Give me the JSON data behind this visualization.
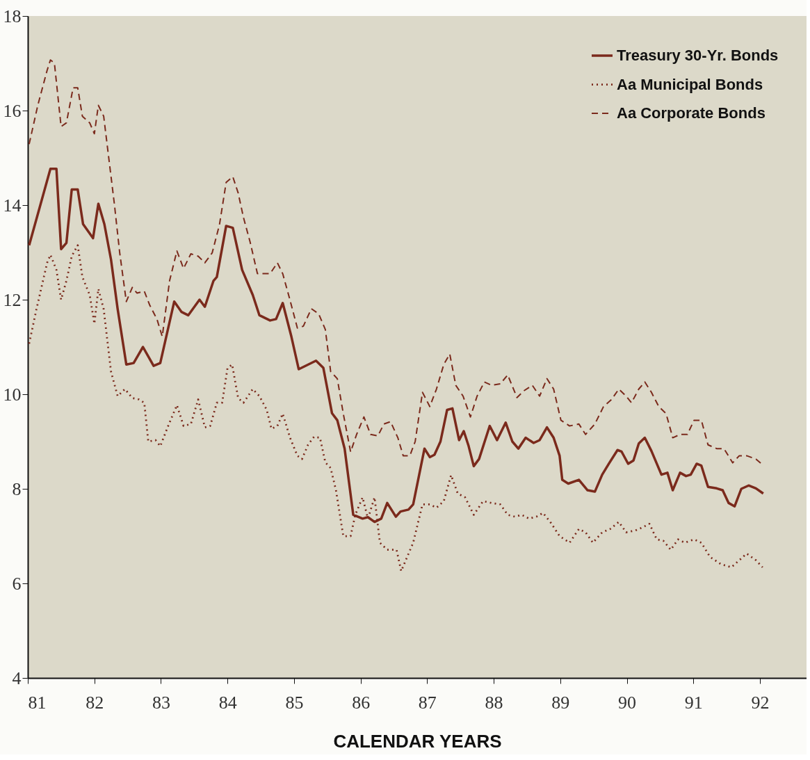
{
  "chart_data": {
    "type": "line",
    "xlabel": "CALENDAR YEARS",
    "xlim": [
      81,
      92.7
    ],
    "xticks": [
      81,
      82,
      83,
      84,
      85,
      86,
      87,
      88,
      89,
      90,
      91,
      92
    ],
    "ylim": [
      4,
      18
    ],
    "yticks": [
      4,
      6,
      8,
      10,
      12,
      14,
      16,
      18
    ],
    "grid": false,
    "legend": "top right",
    "marker": "none",
    "series": [
      {
        "name": "Treasury 30-Yr. Bonds",
        "color": "#7b2a1c",
        "line_style": "solid",
        "x": [
          81.02,
          81.34,
          81.43,
          81.5,
          81.58,
          81.66,
          81.75,
          81.83,
          81.98,
          82.06,
          82.15,
          82.25,
          82.35,
          82.48,
          82.59,
          82.73,
          82.89,
          82.99,
          83.2,
          83.31,
          83.41,
          83.58,
          83.66,
          83.79,
          83.84,
          83.98,
          84.08,
          84.22,
          84.38,
          84.48,
          84.64,
          84.73,
          84.83,
          84.96,
          85.07,
          85.33,
          85.44,
          85.57,
          85.65,
          85.76,
          85.89,
          86.03,
          86.11,
          86.21,
          86.31,
          86.4,
          86.53,
          86.6,
          86.72,
          86.79,
          86.96,
          87.04,
          87.11,
          87.2,
          87.3,
          87.38,
          87.48,
          87.55,
          87.62,
          87.7,
          87.78,
          87.94,
          88.05,
          88.18,
          88.28,
          88.37,
          88.48,
          88.6,
          88.69,
          88.8,
          88.9,
          88.99,
          89.03,
          89.12,
          89.28,
          89.41,
          89.52,
          89.63,
          89.73,
          89.86,
          89.92,
          90.02,
          90.1,
          90.18,
          90.27,
          90.37,
          90.52,
          90.61,
          90.69,
          90.8,
          90.89,
          90.96,
          91.05,
          91.12,
          91.22,
          91.35,
          91.44,
          91.53,
          91.62,
          91.72,
          91.83,
          91.94,
          92.05
        ],
        "values": [
          13.15,
          14.77,
          14.77,
          13.07,
          13.2,
          14.33,
          14.33,
          13.6,
          13.3,
          14.03,
          13.6,
          12.85,
          11.8,
          10.63,
          10.66,
          11.0,
          10.6,
          10.66,
          11.96,
          11.74,
          11.67,
          12.0,
          11.85,
          12.4,
          12.48,
          13.56,
          13.52,
          12.63,
          12.1,
          11.67,
          11.56,
          11.59,
          11.93,
          11.22,
          10.53,
          10.71,
          10.56,
          9.6,
          9.45,
          8.85,
          7.45,
          7.37,
          7.4,
          7.3,
          7.37,
          7.7,
          7.41,
          7.52,
          7.56,
          7.67,
          8.85,
          8.67,
          8.72,
          9.0,
          9.67,
          9.7,
          9.03,
          9.22,
          8.92,
          8.48,
          8.63,
          9.33,
          9.03,
          9.4,
          9.0,
          8.85,
          9.08,
          8.97,
          9.03,
          9.3,
          9.08,
          8.7,
          8.19,
          8.11,
          8.19,
          7.97,
          7.94,
          8.3,
          8.53,
          8.82,
          8.79,
          8.53,
          8.6,
          8.96,
          9.08,
          8.8,
          8.3,
          8.34,
          7.97,
          8.34,
          8.27,
          8.3,
          8.53,
          8.49,
          8.04,
          8.01,
          7.97,
          7.7,
          7.63,
          8.0,
          8.07,
          8.01,
          7.9
        ]
      },
      {
        "name": "Aa Municipal Bonds",
        "color": "#7b2a1c",
        "line_style": "dotted",
        "x": [
          81.02,
          81.13,
          81.29,
          81.34,
          81.43,
          81.5,
          81.58,
          81.66,
          81.75,
          81.82,
          81.93,
          82.0,
          82.06,
          82.14,
          82.25,
          82.35,
          82.46,
          82.57,
          82.67,
          82.75,
          82.81,
          82.92,
          82.99,
          83.1,
          83.24,
          83.34,
          83.45,
          83.56,
          83.66,
          83.74,
          83.84,
          83.92,
          84.0,
          84.07,
          84.16,
          84.24,
          84.38,
          84.48,
          84.59,
          84.66,
          84.75,
          84.83,
          84.94,
          85.05,
          85.12,
          85.21,
          85.3,
          85.39,
          85.47,
          85.55,
          85.63,
          85.74,
          85.85,
          85.92,
          86.03,
          86.11,
          86.21,
          86.29,
          86.4,
          86.54,
          86.61,
          86.7,
          86.79,
          86.93,
          87.04,
          87.14,
          87.25,
          87.36,
          87.46,
          87.57,
          87.7,
          87.84,
          87.97,
          88.1,
          88.21,
          88.32,
          88.42,
          88.53,
          88.64,
          88.74,
          88.85,
          88.99,
          89.14,
          89.28,
          89.38,
          89.49,
          89.63,
          89.75,
          89.88,
          89.99,
          90.13,
          90.23,
          90.34,
          90.45,
          90.55,
          90.66,
          90.77,
          90.87,
          91.01,
          91.12,
          91.25,
          91.41,
          91.57,
          91.69,
          91.8,
          91.94,
          92.04
        ],
        "values": [
          11.07,
          11.8,
          12.78,
          12.95,
          12.63,
          12.0,
          12.4,
          12.92,
          13.15,
          12.48,
          12.1,
          11.49,
          12.23,
          11.8,
          10.48,
          9.96,
          10.11,
          9.92,
          9.89,
          9.82,
          9.0,
          9.03,
          8.9,
          9.3,
          9.77,
          9.33,
          9.37,
          9.89,
          9.3,
          9.33,
          9.82,
          9.82,
          10.55,
          10.63,
          9.92,
          9.82,
          10.11,
          9.96,
          9.67,
          9.27,
          9.33,
          9.59,
          9.08,
          8.7,
          8.63,
          8.93,
          9.1,
          9.08,
          8.56,
          8.44,
          7.97,
          7.0,
          7.0,
          7.45,
          7.82,
          7.37,
          7.82,
          6.86,
          6.71,
          6.71,
          6.26,
          6.56,
          6.86,
          7.67,
          7.67,
          7.6,
          7.74,
          8.29,
          7.9,
          7.82,
          7.45,
          7.74,
          7.7,
          7.67,
          7.45,
          7.41,
          7.45,
          7.37,
          7.41,
          7.49,
          7.3,
          7.0,
          6.86,
          7.15,
          7.08,
          6.86,
          7.08,
          7.15,
          7.3,
          7.08,
          7.12,
          7.18,
          7.26,
          6.93,
          6.9,
          6.71,
          6.93,
          6.86,
          6.93,
          6.86,
          6.56,
          6.41,
          6.34,
          6.49,
          6.63,
          6.49,
          6.34
        ]
      },
      {
        "name": "Aa Corporate Bonds",
        "color": "#7b2a1c",
        "line_style": "dashed",
        "x": [
          81.02,
          81.15,
          81.29,
          81.34,
          81.4,
          81.5,
          81.58,
          81.68,
          81.75,
          81.82,
          81.93,
          82.0,
          82.06,
          82.14,
          82.21,
          82.3,
          82.38,
          82.48,
          82.57,
          82.64,
          82.75,
          82.83,
          82.94,
          83.02,
          83.13,
          83.24,
          83.34,
          83.45,
          83.56,
          83.66,
          83.77,
          83.88,
          83.98,
          84.08,
          84.16,
          84.24,
          84.34,
          84.45,
          84.56,
          84.64,
          84.75,
          84.83,
          84.93,
          85.05,
          85.14,
          85.26,
          85.37,
          85.47,
          85.55,
          85.65,
          85.74,
          85.85,
          85.94,
          86.05,
          86.15,
          86.26,
          86.35,
          86.45,
          86.56,
          86.64,
          86.74,
          86.82,
          86.93,
          87.04,
          87.14,
          87.25,
          87.34,
          87.43,
          87.54,
          87.65,
          87.75,
          87.86,
          87.97,
          88.1,
          88.21,
          88.35,
          88.45,
          88.58,
          88.69,
          88.8,
          88.9,
          89.01,
          89.14,
          89.28,
          89.38,
          89.52,
          89.65,
          89.77,
          89.88,
          89.99,
          90.07,
          90.18,
          90.27,
          90.37,
          90.48,
          90.59,
          90.69,
          90.8,
          90.91,
          91.01,
          91.12,
          91.22,
          91.35,
          91.46,
          91.59,
          91.69,
          91.8,
          91.94,
          92.04
        ],
        "values": [
          15.29,
          16.11,
          16.85,
          17.07,
          17.0,
          15.66,
          15.74,
          16.48,
          16.48,
          15.88,
          15.74,
          15.51,
          16.11,
          15.88,
          15.07,
          14.03,
          13.0,
          11.96,
          12.26,
          12.14,
          12.18,
          11.89,
          11.59,
          11.22,
          12.4,
          13.03,
          12.66,
          12.97,
          12.92,
          12.78,
          12.99,
          13.59,
          14.48,
          14.6,
          14.26,
          13.74,
          13.22,
          12.55,
          12.55,
          12.55,
          12.78,
          12.55,
          12.04,
          11.4,
          11.44,
          11.81,
          11.7,
          11.37,
          10.48,
          10.33,
          9.59,
          8.78,
          9.15,
          9.52,
          9.15,
          9.12,
          9.37,
          9.42,
          9.08,
          8.7,
          8.7,
          9.0,
          10.04,
          9.74,
          10.11,
          10.63,
          10.85,
          10.19,
          9.96,
          9.52,
          9.96,
          10.26,
          10.19,
          10.22,
          10.41,
          9.93,
          10.07,
          10.19,
          9.96,
          10.33,
          10.11,
          9.45,
          9.33,
          9.37,
          9.15,
          9.37,
          9.74,
          9.89,
          10.11,
          9.96,
          9.82,
          10.11,
          10.26,
          10.04,
          9.74,
          9.59,
          9.08,
          9.15,
          9.15,
          9.45,
          9.45,
          8.93,
          8.85,
          8.85,
          8.55,
          8.7,
          8.7,
          8.63,
          8.51
        ]
      }
    ]
  }
}
